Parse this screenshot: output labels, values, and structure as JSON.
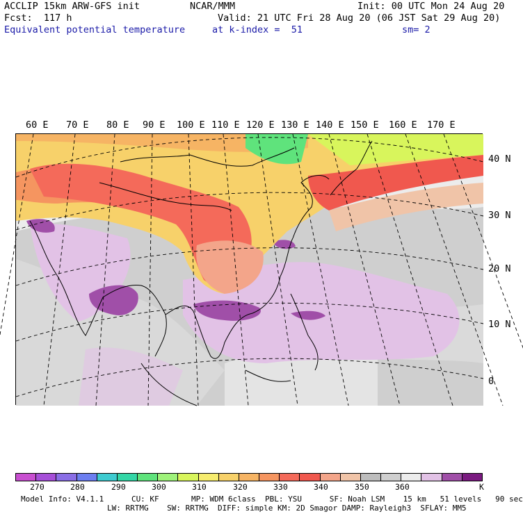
{
  "header": {
    "left_line1": "ACCLIP 15km ARW-GFS init",
    "left_line2": "Fcst:  117 h",
    "field_name": "Equivalent potential temperature",
    "center_line1": "NCAR/MMM",
    "init": "Init: 00 UTC Mon 24 Aug 20",
    "valid": "Valid: 21 UTC Fri 28 Aug 20 (06 JST Sat 29 Aug 20)",
    "level": "at k-index =  51",
    "smoothing": "sm= 2"
  },
  "map": {
    "lon_labels": [
      "60 E",
      "70 E",
      "80 E",
      "90 E",
      "100 E",
      "110 E",
      "120 E",
      "130 E",
      "140 E",
      "150 E",
      "160 E",
      "170 E"
    ],
    "lat_labels": [
      "40 N",
      "30 N",
      "20 N",
      "10 N",
      "0"
    ]
  },
  "colorbar": {
    "colors": [
      "#c84fd0",
      "#a64fd8",
      "#8a6ee6",
      "#6c7ef0",
      "#3ecbd0",
      "#33d6a6",
      "#5fe37c",
      "#9ef27a",
      "#d8f55c",
      "#f6ec6e",
      "#f7d16a",
      "#f6b464",
      "#f59560",
      "#f46a5a",
      "#f0584e",
      "#f3a58a",
      "#f0c4a8",
      "#bdbdbd",
      "#cfcfcf",
      "#ececec",
      "#e2c2e6",
      "#a04fa8",
      "#7a1a80"
    ],
    "ticks": [
      "270",
      "280",
      "290",
      "300",
      "310",
      "320",
      "330",
      "340",
      "350",
      "360"
    ],
    "unit": "K"
  },
  "footer": {
    "line1": "Model Info: V4.1.1      CU: KF       MP: WDM 6class  PBL: YSU      SF: Noah LSM    15 km   51 levels   90 sec",
    "line2": "LW: RRTMG    SW: RRTMG  DIFF: simple KM: 2D Smagor DAMP: Rayleigh3  SFLAY: MM5"
  }
}
